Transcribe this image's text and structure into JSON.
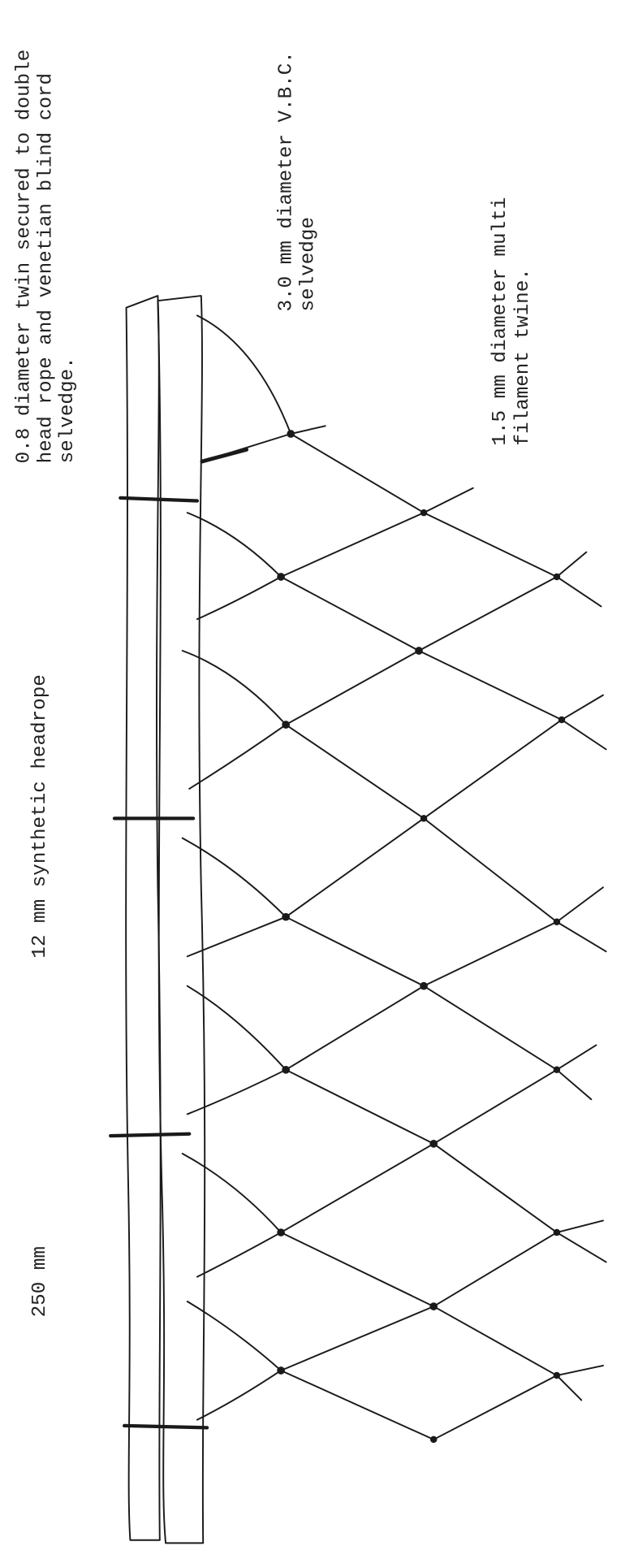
{
  "annotations": [
    {
      "lines": [
        "0.8 diameter twin secured to double",
        "head rope and venetian blind cord",
        "selvedge."
      ]
    },
    {
      "lines": [
        "3.0 mm diameter V.B.C.",
        "selvedge"
      ]
    },
    {
      "lines": [
        "1.5 mm diameter multi",
        "filament twine."
      ]
    },
    {
      "lines": [
        "12 mm synthetic headrope"
      ]
    },
    {
      "lines": [
        "250 mm"
      ]
    }
  ]
}
